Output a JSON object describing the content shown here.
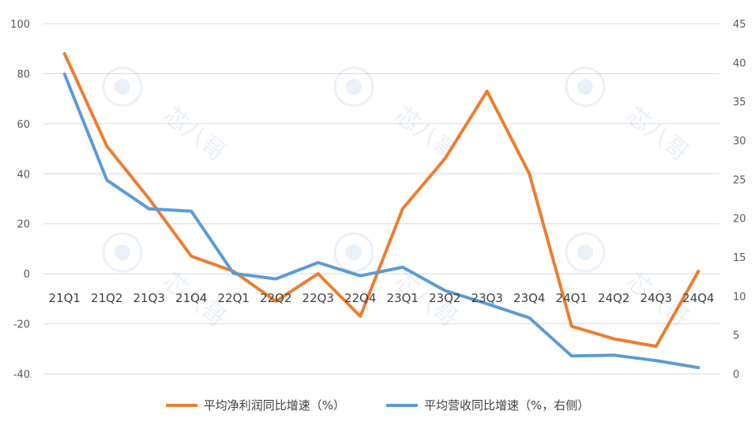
{
  "chart_data": {
    "type": "line",
    "categories": [
      "21Q1",
      "21Q2",
      "21Q3",
      "21Q4",
      "22Q1",
      "22Q2",
      "22Q3",
      "22Q4",
      "23Q1",
      "23Q2",
      "23Q3",
      "23Q4",
      "24Q1",
      "24Q2",
      "24Q3",
      "24Q4"
    ],
    "series": [
      {
        "name": "平均净利润同比增速（%）",
        "axis": "left",
        "color": "#ED7D31",
        "values": [
          88,
          51,
          30,
          7,
          1,
          -11,
          0,
          -17,
          26,
          46,
          73,
          40,
          -21,
          -26,
          -29,
          1
        ]
      },
      {
        "name": "平均营收同比增速（%，右侧）",
        "axis": "right",
        "color": "#5B9BD5",
        "values": [
          38.5,
          24.9,
          21.2,
          20.9,
          12.9,
          12.2,
          14.3,
          12.6,
          13.7,
          10.7,
          9.0,
          7.2,
          2.3,
          2.4,
          1.7,
          0.8
        ]
      }
    ],
    "y_left": {
      "min": -40,
      "max": 100,
      "ticks": [
        100,
        80,
        60,
        40,
        20,
        0,
        -20,
        -40
      ]
    },
    "y_right": {
      "min": 0,
      "max": 45,
      "ticks": [
        45,
        40,
        35,
        30,
        25,
        20,
        15,
        10,
        5,
        0
      ]
    },
    "grid": true,
    "legend_position": "bottom",
    "gridline_color": "#D9D9D9",
    "watermark_text": "芯八哥"
  }
}
